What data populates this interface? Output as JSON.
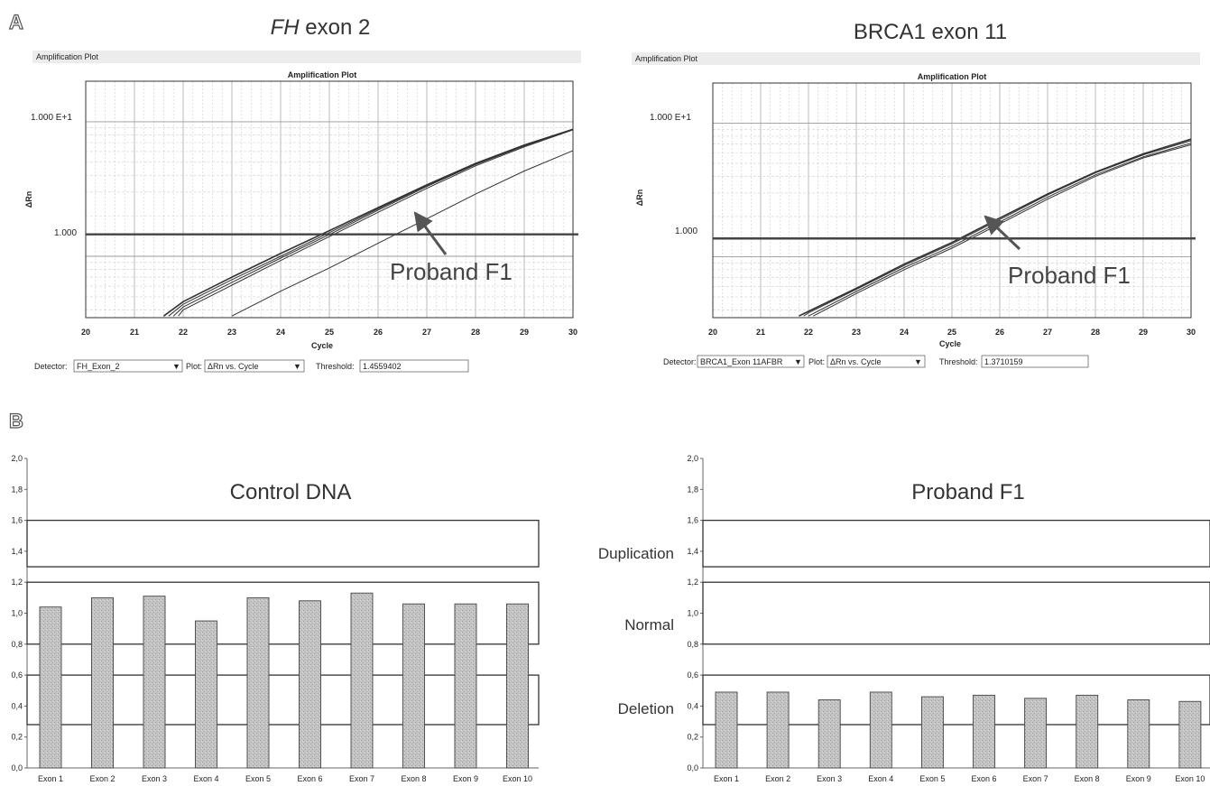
{
  "labels": {
    "panel_a": "A",
    "panel_b": "B"
  },
  "amp_plots": [
    {
      "title_italic": "FH",
      "title_rest": " exon 2",
      "window_title": "Amplification Plot",
      "plot_title": "Amplification Plot",
      "ylabel": "ΔRn",
      "xlabel": "Cycle",
      "ytick_labels": [
        "1.000 E+1",
        "1.000"
      ],
      "xticks": [
        20,
        21,
        22,
        23,
        24,
        25,
        26,
        27,
        28,
        29,
        30
      ],
      "detector_label": "Detector:",
      "detector_value": "FH_Exon_2",
      "plot_label": "Plot:",
      "plot_value": "ΔRn vs. Cycle",
      "threshold_label": "Threshold:",
      "threshold_value": "1.4559402",
      "annotation": "Proband F1"
    },
    {
      "title_italic": "",
      "title_rest": "BRCA1 exon 11",
      "window_title": "Amplification Plot",
      "plot_title": "Amplification Plot",
      "ylabel": "ΔRn",
      "xlabel": "Cycle",
      "ytick_labels": [
        "1.000 E+1",
        "1.000"
      ],
      "xticks": [
        20,
        21,
        22,
        23,
        24,
        25,
        26,
        27,
        28,
        29,
        30
      ],
      "detector_label": "Detector:",
      "detector_value": "BRCA1_Exon 11AFBR",
      "plot_label": "Plot:",
      "plot_value": "ΔRn vs. Cycle",
      "threshold_label": "Threshold:",
      "threshold_value": "1.3710159",
      "annotation": "Proband F1"
    }
  ],
  "zone_labels": {
    "duplication": "Duplication",
    "normal": "Normal",
    "deletion": "Deletion"
  },
  "chart_data": [
    {
      "type": "line",
      "title": "FH exon 2",
      "xlabel": "Cycle",
      "ylabel": "ΔRn",
      "xlim": [
        20,
        30
      ],
      "ylim": [
        0.35,
        20
      ],
      "yscale": "log",
      "grid": true,
      "threshold": 1.4559402,
      "series": [
        {
          "x": [
            21.6,
            22,
            23,
            24,
            25,
            26,
            27,
            28,
            29,
            30
          ],
          "y": [
            0.36,
            0.46,
            0.7,
            1.05,
            1.55,
            2.3,
            3.4,
            4.9,
            6.7,
            8.8
          ]
        },
        {
          "x": [
            21.7,
            22,
            23,
            24,
            25,
            26,
            27,
            28,
            29,
            30
          ],
          "y": [
            0.36,
            0.44,
            0.67,
            1.0,
            1.5,
            2.25,
            3.35,
            4.85,
            6.65,
            8.8
          ]
        },
        {
          "x": [
            21.8,
            22,
            23,
            24,
            25,
            26,
            27,
            28,
            29,
            30
          ],
          "y": [
            0.36,
            0.42,
            0.64,
            0.97,
            1.45,
            2.2,
            3.3,
            4.8,
            6.6,
            8.8
          ]
        },
        {
          "x": [
            21.9,
            22,
            23,
            24,
            25,
            26,
            27,
            28,
            29,
            30
          ],
          "y": [
            0.36,
            0.4,
            0.61,
            0.93,
            1.4,
            2.12,
            3.2,
            4.7,
            6.5,
            8.7
          ]
        },
        {
          "x": [
            23.0,
            24,
            25,
            26,
            27,
            28,
            29,
            30
          ],
          "y": [
            0.36,
            0.55,
            0.82,
            1.25,
            1.9,
            2.9,
            4.3,
            6.1
          ]
        }
      ]
    },
    {
      "type": "line",
      "title": "BRCA1 exon 11",
      "xlabel": "Cycle",
      "ylabel": "ΔRn",
      "xlim": [
        20,
        30
      ],
      "ylim": [
        0.35,
        20
      ],
      "yscale": "log",
      "grid": true,
      "threshold": 1.3710159,
      "series": [
        {
          "x": [
            21.8,
            22,
            23,
            24,
            25,
            26,
            27,
            28,
            29,
            30
          ],
          "y": [
            0.36,
            0.39,
            0.58,
            0.88,
            1.28,
            1.95,
            2.95,
            4.3,
            5.9,
            7.6
          ]
        },
        {
          "x": [
            21.9,
            22,
            23,
            24,
            25,
            26,
            27,
            28,
            29,
            30
          ],
          "y": [
            0.36,
            0.38,
            0.57,
            0.86,
            1.25,
            1.9,
            2.9,
            4.25,
            5.8,
            7.4
          ]
        },
        {
          "x": [
            22.0,
            23,
            24,
            25,
            26,
            27,
            28,
            29,
            30
          ],
          "y": [
            0.36,
            0.55,
            0.83,
            1.2,
            1.82,
            2.8,
            4.1,
            5.6,
            7.1
          ]
        },
        {
          "x": [
            22.1,
            23,
            24,
            25,
            26,
            27,
            28,
            29,
            30
          ],
          "y": [
            0.36,
            0.53,
            0.8,
            1.16,
            1.76,
            2.7,
            4.0,
            5.5,
            6.9
          ]
        }
      ]
    },
    {
      "type": "bar",
      "title": "Control DNA",
      "categories": [
        "Exon 1",
        "Exon 2",
        "Exon 3",
        "Exon 4",
        "Exon 5",
        "Exon 6",
        "Exon 7",
        "Exon 8",
        "Exon 9",
        "Exon 10"
      ],
      "values": [
        1.04,
        1.1,
        1.11,
        0.95,
        1.1,
        1.08,
        1.13,
        1.06,
        1.06,
        1.06
      ],
      "ylim": [
        0,
        2.0
      ],
      "ytick_labels": [
        "0,0",
        "0,2",
        "0,4",
        "0,6",
        "0,8",
        "1,0",
        "1,2",
        "1,4",
        "1,6",
        "1,8",
        "2,0"
      ],
      "zones": [
        [
          1.3,
          1.6
        ],
        [
          0.8,
          1.2
        ],
        [
          0.28,
          0.6
        ]
      ]
    },
    {
      "type": "bar",
      "title": "Proband F1",
      "categories": [
        "Exon 1",
        "Exon 2",
        "Exon 3",
        "Exon 4",
        "Exon 5",
        "Exon 6",
        "Exon 7",
        "Exon 8",
        "Exon 9",
        "Exon 10"
      ],
      "values": [
        0.49,
        0.49,
        0.44,
        0.49,
        0.46,
        0.47,
        0.45,
        0.47,
        0.44,
        0.43
      ],
      "ylim": [
        0,
        2.0
      ],
      "ytick_labels": [
        "0,0",
        "0,2",
        "0,4",
        "0,6",
        "0,8",
        "1,0",
        "1,2",
        "1,4",
        "1,6",
        "1,8",
        "2,0"
      ],
      "zones": [
        [
          1.3,
          1.6
        ],
        [
          0.8,
          1.2
        ],
        [
          0.28,
          0.6
        ]
      ]
    }
  ]
}
